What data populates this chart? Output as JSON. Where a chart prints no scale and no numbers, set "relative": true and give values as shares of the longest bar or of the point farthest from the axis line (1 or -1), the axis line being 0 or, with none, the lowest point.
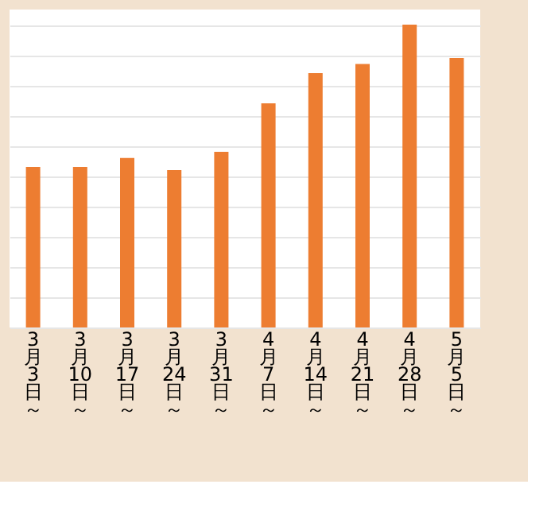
{
  "chart_data": {
    "type": "bar",
    "relative": true,
    "grid": "y",
    "color": "#ed7d31",
    "categories": [
      "3月3日～",
      "3月10日～",
      "3月17日～",
      "3月24日～",
      "3月31日～",
      "4月7日～",
      "4月14日～",
      "4月21日～",
      "4月28日～",
      "5月5日～"
    ],
    "values": [
      0.53,
      0.53,
      0.56,
      0.52,
      0.58,
      0.74,
      0.84,
      0.87,
      1,
      0.89
    ]
  }
}
